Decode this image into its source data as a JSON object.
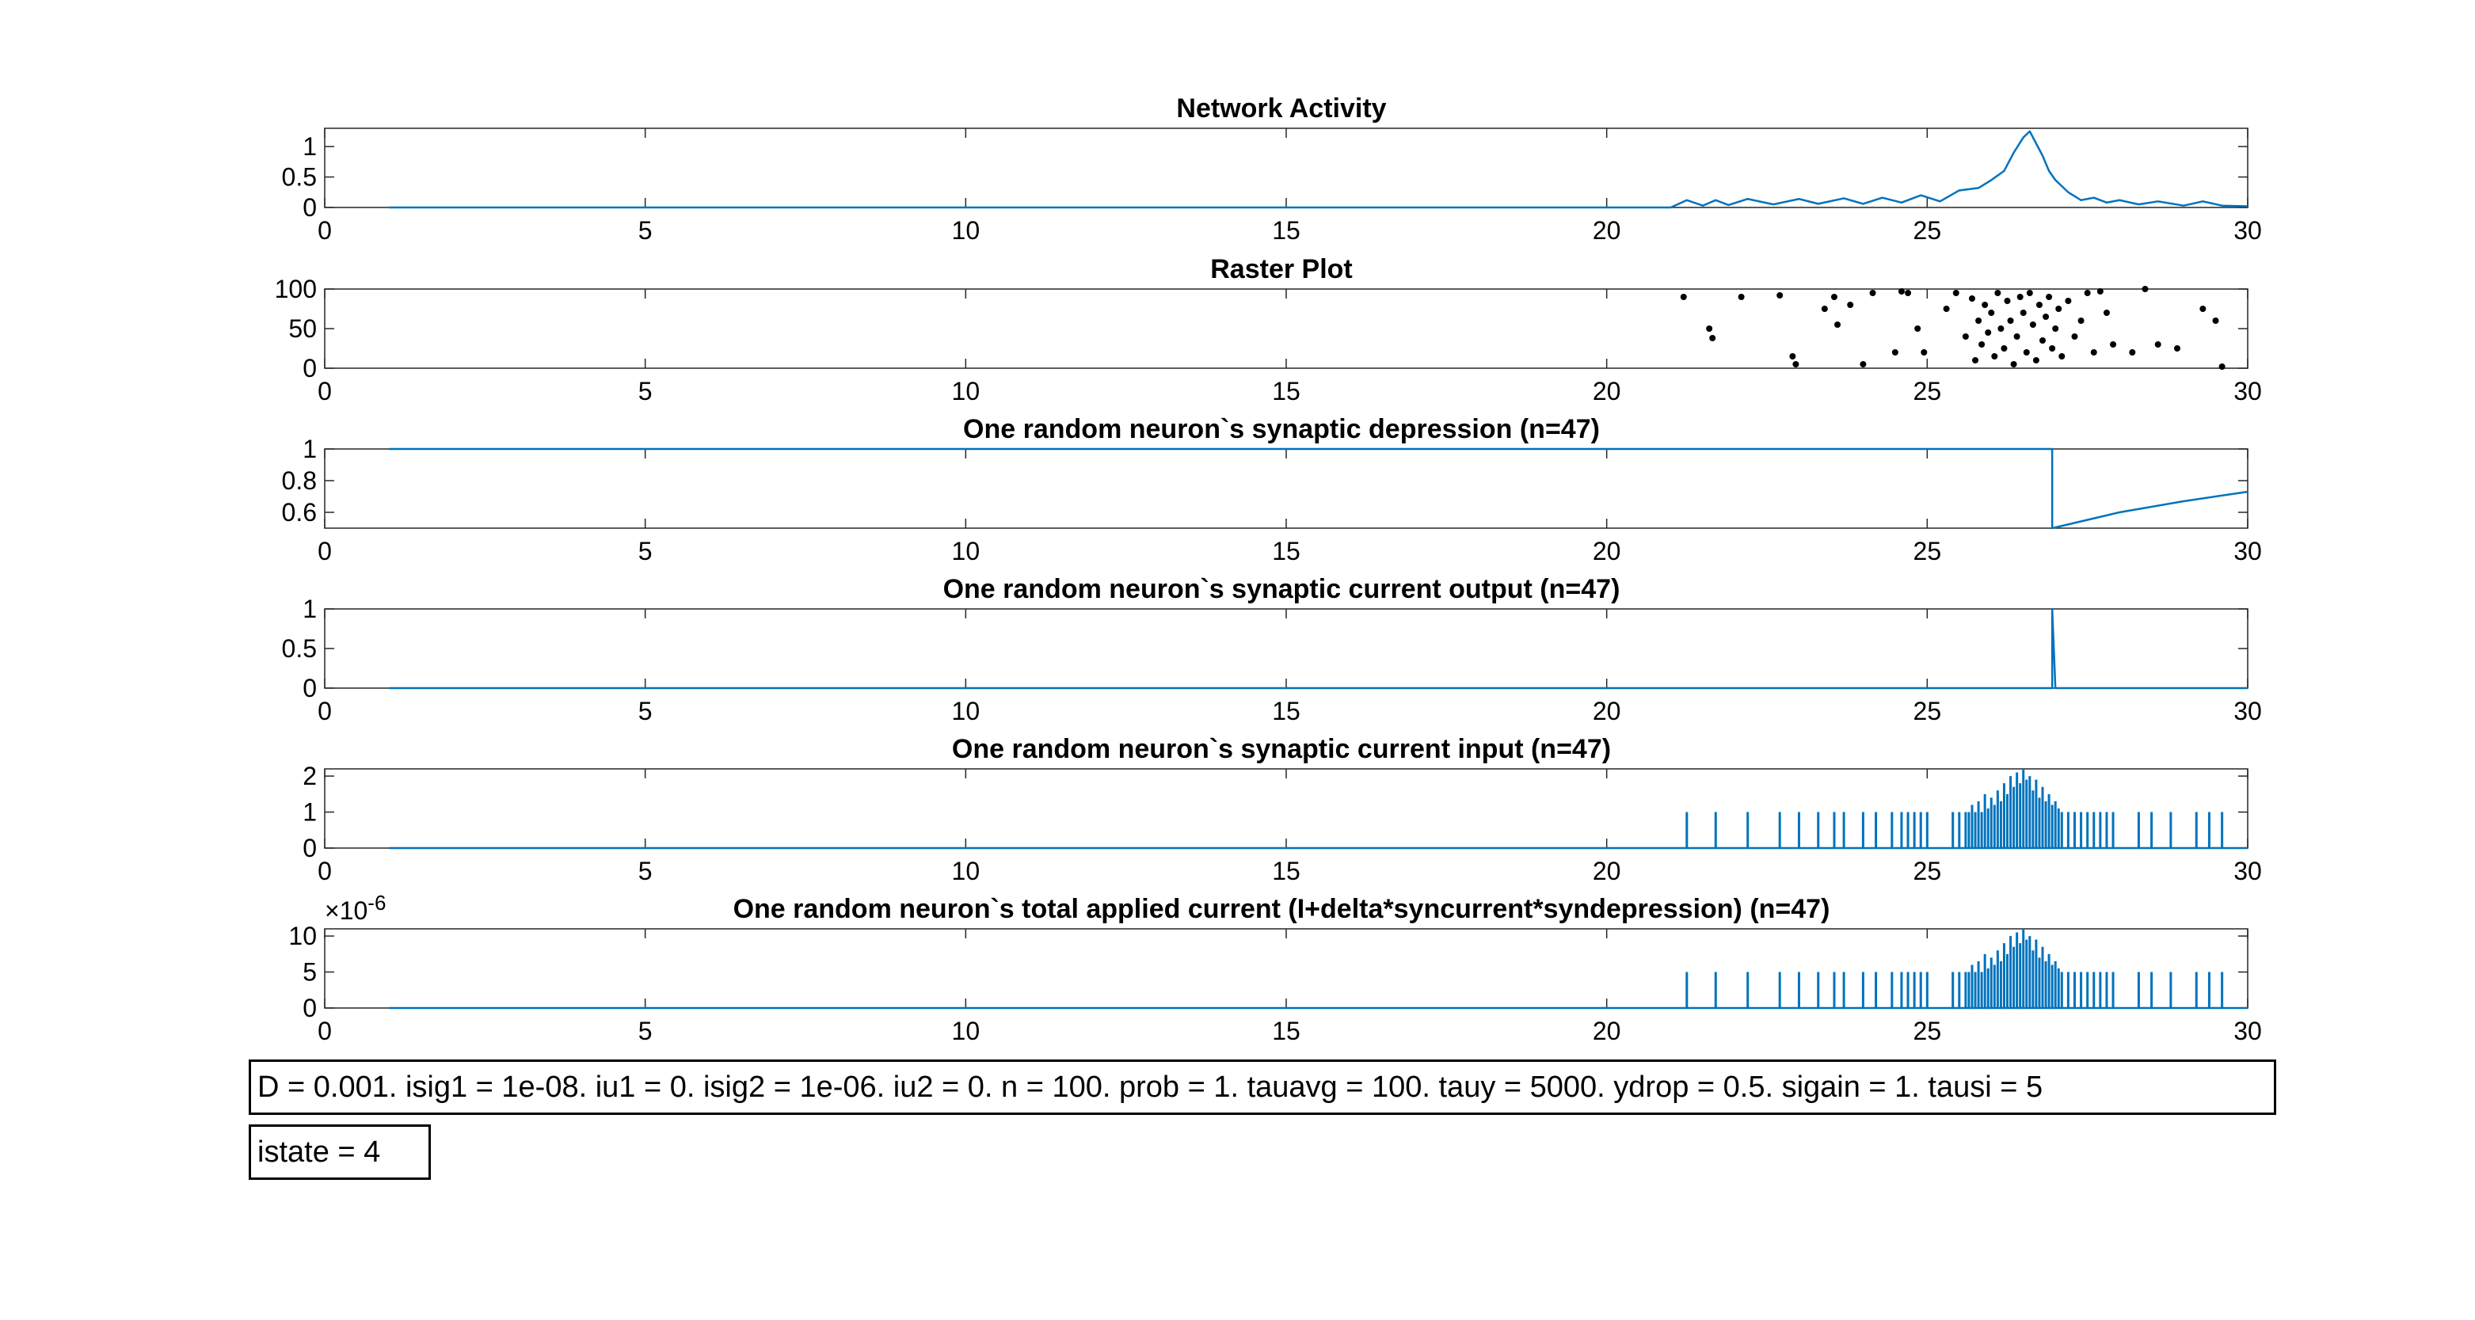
{
  "chart_data": [
    {
      "type": "line",
      "title": "Network Activity",
      "xlim": [
        0,
        30
      ],
      "ylim": [
        0,
        1.3
      ],
      "xticks": [
        0,
        5,
        10,
        15,
        20,
        25,
        30
      ],
      "yticks": [
        0,
        0.5,
        1
      ],
      "ytick_labels": [
        "0",
        "0.5",
        "1"
      ],
      "color": "#0072BD",
      "x": [
        1,
        21.0,
        21.25,
        21.5,
        21.7,
        21.9,
        22.2,
        22.6,
        23.0,
        23.3,
        23.7,
        24.0,
        24.3,
        24.6,
        24.9,
        25.2,
        25.5,
        25.8,
        26.0,
        26.2,
        26.35,
        26.5,
        26.6,
        26.7,
        26.8,
        26.9,
        27.0,
        27.2,
        27.4,
        27.6,
        27.8,
        28.0,
        28.3,
        28.6,
        29.0,
        29.3,
        29.6,
        30
      ],
      "y": [
        0,
        0,
        0.12,
        0.03,
        0.12,
        0.04,
        0.14,
        0.05,
        0.14,
        0.06,
        0.15,
        0.06,
        0.16,
        0.08,
        0.2,
        0.1,
        0.28,
        0.32,
        0.45,
        0.6,
        0.9,
        1.15,
        1.25,
        1.05,
        0.85,
        0.6,
        0.45,
        0.25,
        0.12,
        0.16,
        0.08,
        0.12,
        0.05,
        0.1,
        0.03,
        0.1,
        0.03,
        0.02
      ]
    },
    {
      "type": "scatter",
      "title": "Raster Plot",
      "xlim": [
        0,
        30
      ],
      "ylim": [
        0,
        100
      ],
      "xticks": [
        0,
        5,
        10,
        15,
        20,
        25,
        30
      ],
      "yticks": [
        0,
        50,
        100
      ],
      "ytick_labels": [
        "0",
        "50",
        "100"
      ],
      "color": "#000000",
      "x": [
        21.2,
        21.6,
        21.65,
        22.1,
        22.7,
        22.9,
        22.95,
        23.4,
        23.55,
        23.6,
        23.8,
        24.0,
        24.15,
        24.5,
        24.6,
        24.7,
        24.85,
        24.95,
        25.3,
        25.45,
        25.6,
        25.7,
        25.75,
        25.8,
        25.85,
        25.9,
        25.95,
        26.0,
        26.05,
        26.1,
        26.15,
        26.2,
        26.25,
        26.3,
        26.35,
        26.4,
        26.45,
        26.5,
        26.55,
        26.6,
        26.65,
        26.7,
        26.75,
        26.8,
        26.85,
        26.9,
        26.95,
        27.0,
        27.05,
        27.1,
        27.2,
        27.3,
        27.4,
        27.5,
        27.6,
        27.7,
        27.8,
        27.9,
        28.2,
        28.4,
        28.6,
        28.9,
        29.3,
        29.5,
        29.6
      ],
      "y": [
        90,
        50,
        38,
        90,
        92,
        15,
        5,
        75,
        90,
        55,
        80,
        5,
        95,
        20,
        97,
        95,
        50,
        20,
        75,
        95,
        40,
        88,
        10,
        60,
        30,
        80,
        45,
        70,
        15,
        95,
        50,
        25,
        85,
        60,
        5,
        40,
        90,
        70,
        20,
        95,
        55,
        10,
        80,
        35,
        65,
        90,
        25,
        50,
        75,
        15,
        85,
        40,
        60,
        95,
        20,
        97,
        70,
        30,
        20,
        100,
        30,
        25,
        75,
        60,
        2
      ]
    },
    {
      "type": "line",
      "title": "One random neuron`s synaptic depression (n=47)",
      "xlim": [
        0,
        30
      ],
      "ylim": [
        0.5,
        1
      ],
      "xticks": [
        0,
        5,
        10,
        15,
        20,
        25,
        30
      ],
      "yticks": [
        0.6,
        0.8,
        1
      ],
      "ytick_labels": [
        "0.6",
        "0.8",
        "1"
      ],
      "color": "#0072BD",
      "x": [
        1,
        26.95,
        26.95,
        28.0,
        29.0,
        30
      ],
      "y": [
        1,
        1,
        0.5,
        0.6,
        0.67,
        0.73
      ]
    },
    {
      "type": "line",
      "title": "One random neuron`s synaptic current output (n=47)",
      "xlim": [
        0,
        30
      ],
      "ylim": [
        0,
        1
      ],
      "xticks": [
        0,
        5,
        10,
        15,
        20,
        25,
        30
      ],
      "yticks": [
        0,
        0.5,
        1
      ],
      "ytick_labels": [
        "0",
        "0.5",
        "1"
      ],
      "color": "#0072BD",
      "x": [
        1,
        26.95,
        26.95,
        27.0,
        30
      ],
      "y": [
        0,
        0,
        1,
        0,
        0
      ]
    },
    {
      "type": "line",
      "title": "One random neuron`s synaptic current input (n=47)",
      "xlim": [
        0,
        30
      ],
      "ylim": [
        0,
        2.2
      ],
      "xticks": [
        0,
        5,
        10,
        15,
        20,
        25,
        30
      ],
      "yticks": [
        0,
        1,
        2
      ],
      "ytick_labels": [
        "0",
        "1",
        "2"
      ],
      "color": "#0072BD",
      "spikes_x": [
        21.25,
        21.7,
        22.2,
        22.7,
        23.0,
        23.3,
        23.55,
        23.7,
        24.0,
        24.2,
        24.45,
        24.6,
        24.7,
        24.8,
        24.9,
        25.0,
        25.4,
        25.5,
        25.6,
        25.65,
        25.7,
        25.75,
        25.8,
        25.85,
        25.9,
        25.95,
        26.0,
        26.05,
        26.1,
        26.15,
        26.2,
        26.25,
        26.3,
        26.35,
        26.4,
        26.45,
        26.5,
        26.55,
        26.6,
        26.65,
        26.7,
        26.75,
        26.8,
        26.85,
        26.9,
        26.95,
        27.0,
        27.05,
        27.1,
        27.2,
        27.3,
        27.4,
        27.5,
        27.6,
        27.7,
        27.8,
        27.9,
        28.3,
        28.5,
        28.8,
        29.2,
        29.4,
        29.6
      ],
      "spikes_y": [
        1,
        1,
        1,
        1,
        1,
        1,
        1,
        1,
        1,
        1,
        1,
        1,
        1,
        1,
        1,
        1,
        1,
        1,
        1,
        1,
        1.2,
        1,
        1.3,
        1,
        1.5,
        1.1,
        1.4,
        1.2,
        1.6,
        1.3,
        1.8,
        1.5,
        2.0,
        1.7,
        2.1,
        1.8,
        2.2,
        1.9,
        2.0,
        1.6,
        1.9,
        1.4,
        1.7,
        1.3,
        1.5,
        1.2,
        1.3,
        1.1,
        1.0,
        1,
        1,
        1,
        1,
        1,
        1,
        1,
        1,
        1,
        1,
        1,
        1,
        1,
        1
      ]
    },
    {
      "type": "line",
      "title": "One random neuron`s total applied current (I+delta*syncurrent*syndepression) (n=47)",
      "xlim": [
        0,
        30
      ],
      "ylim": [
        0,
        11
      ],
      "xticks": [
        0,
        5,
        10,
        15,
        20,
        25,
        30
      ],
      "yticks": [
        0,
        5,
        10
      ],
      "ytick_labels": [
        "0",
        "5",
        "10"
      ],
      "y_exponent": "×10",
      "y_exponent_power": "-6",
      "color": "#0072BD",
      "spikes_x": [
        21.25,
        21.7,
        22.2,
        22.7,
        23.0,
        23.3,
        23.55,
        23.7,
        24.0,
        24.2,
        24.45,
        24.6,
        24.7,
        24.8,
        24.9,
        25.0,
        25.4,
        25.5,
        25.6,
        25.65,
        25.7,
        25.75,
        25.8,
        25.85,
        25.9,
        25.95,
        26.0,
        26.05,
        26.1,
        26.15,
        26.2,
        26.25,
        26.3,
        26.35,
        26.4,
        26.45,
        26.5,
        26.55,
        26.6,
        26.65,
        26.7,
        26.75,
        26.8,
        26.85,
        26.9,
        26.95,
        27.0,
        27.05,
        27.1,
        27.2,
        27.3,
        27.4,
        27.5,
        27.6,
        27.7,
        27.8,
        27.9,
        28.3,
        28.5,
        28.8,
        29.2,
        29.4,
        29.6
      ],
      "spikes_y": [
        5,
        5,
        5,
        5,
        5,
        5,
        5,
        5,
        5,
        5,
        5,
        5,
        5,
        5,
        5,
        5,
        5,
        5,
        5,
        5,
        6,
        5,
        6.5,
        5,
        7.5,
        5.5,
        7,
        6,
        8,
        6.5,
        9,
        7.5,
        10,
        8.5,
        10.5,
        9,
        11,
        9.5,
        10,
        8,
        9.5,
        7,
        8.5,
        6.5,
        7.5,
        6,
        6.5,
        5.5,
        5,
        5,
        5,
        5,
        5,
        5,
        5,
        5,
        5,
        5,
        5,
        5,
        5,
        5,
        5
      ]
    }
  ],
  "annotations": {
    "params": "D = 0.001. isig1 = 1e-08. iu1 = 0. isig2 = 1e-06. iu2 = 0. n = 100. prob = 1. tauavg = 100. tauy = 5000. ydrop = 0.5. sigain = 1. tausi = 5",
    "state": "istate = 4"
  }
}
